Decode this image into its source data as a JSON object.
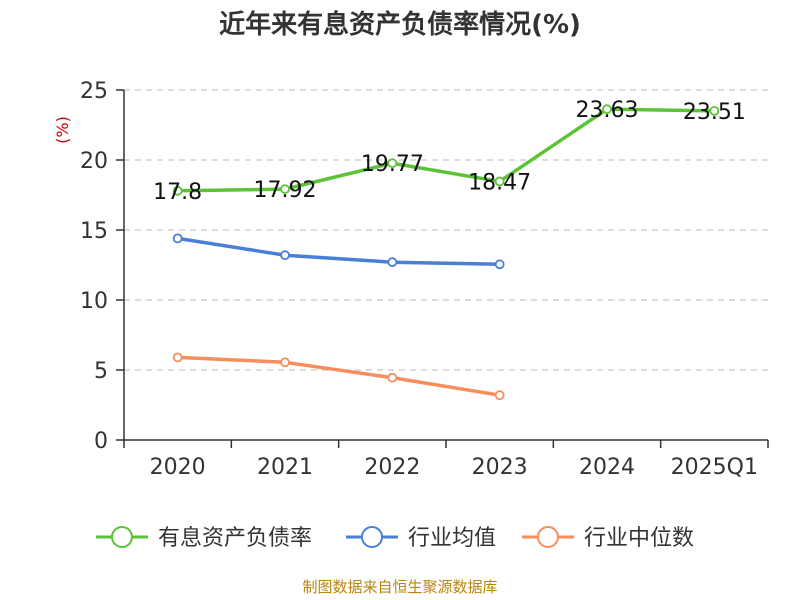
{
  "chart_data": {
    "type": "line",
    "title": "近年来有息资产负债率情况(%)",
    "ylabel": "(%)",
    "xlabel": "",
    "categories": [
      "2020",
      "2021",
      "2022",
      "2023",
      "2024",
      "2025Q1"
    ],
    "ylim": [
      0,
      25
    ],
    "yticks": [
      0,
      5,
      10,
      15,
      20,
      25
    ],
    "grid": true,
    "legend_position": "bottom",
    "series": [
      {
        "name": "有息资产负债率",
        "color": "#5cc337",
        "values": [
          17.8,
          17.92,
          19.77,
          18.47,
          23.63,
          23.51
        ],
        "labels": [
          "17.8",
          "17.92",
          "19.77",
          "18.47",
          "23.63",
          "23.51"
        ],
        "show_labels": true
      },
      {
        "name": "行业均值",
        "color": "#4a7fd6",
        "values": [
          14.4,
          13.2,
          12.7,
          12.55,
          null,
          null
        ],
        "show_labels": false
      },
      {
        "name": "行业中位数",
        "color": "#f58d5d",
        "values": [
          5.9,
          5.55,
          4.45,
          3.2,
          null,
          null
        ],
        "show_labels": false
      }
    ]
  },
  "source": "制图数据来自恒生聚源数据库"
}
